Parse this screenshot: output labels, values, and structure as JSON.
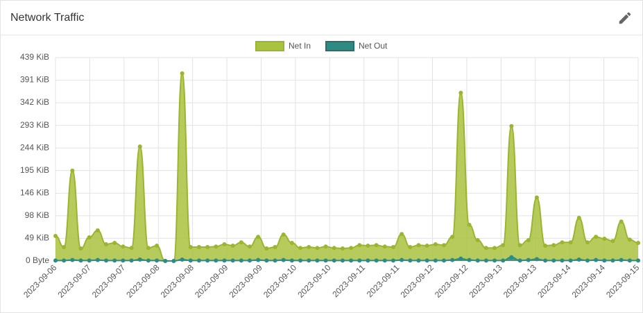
{
  "chart_data": {
    "type": "area",
    "title": "Network Traffic",
    "x_tick_labels": [
      "2023-09-06",
      "2023-09-07",
      "2023-09-07",
      "2023-09-08",
      "2023-09-08",
      "2023-09-09",
      "2023-09-09",
      "2023-09-10",
      "2023-09-10",
      "2023-09-11",
      "2023-09-11",
      "2023-09-12",
      "2023-09-12",
      "2023-09-13",
      "2023-09-13",
      "2023-09-14",
      "2023-09-14",
      "2023-09-15"
    ],
    "series": [
      {
        "name": "Net In",
        "color": "#a9c23f",
        "values": [
          54,
          30,
          195,
          27,
          51,
          66,
          36,
          39,
          31,
          28,
          247,
          28,
          33,
          0,
          0,
          405,
          30,
          30,
          30,
          31,
          36,
          33,
          40,
          31,
          52,
          27,
          30,
          57,
          39,
          28,
          30,
          28,
          31,
          28,
          27,
          28,
          34,
          33,
          34,
          31,
          30,
          58,
          30,
          34,
          33,
          36,
          34,
          52,
          363,
          78,
          45,
          28,
          28,
          34,
          291,
          34,
          45,
          137,
          33,
          34,
          40,
          40,
          93,
          40,
          52,
          48,
          43,
          85,
          46,
          39
        ]
      },
      {
        "name": "Net Out",
        "color": "#2e8b84",
        "values": [
          1,
          1,
          2,
          1,
          1,
          2,
          1,
          1,
          1,
          1,
          3,
          1,
          1,
          0,
          0,
          3,
          1,
          1,
          1,
          1,
          1,
          1,
          1,
          1,
          2,
          1,
          1,
          2,
          1,
          1,
          1,
          1,
          1,
          1,
          1,
          1,
          1,
          1,
          1,
          1,
          1,
          2,
          1,
          1,
          1,
          1,
          1,
          2,
          5,
          2,
          1,
          1,
          1,
          1,
          8,
          1,
          2,
          4,
          1,
          1,
          1,
          1,
          3,
          1,
          2,
          1,
          1,
          2,
          1,
          1
        ]
      }
    ],
    "ylim": [
      0,
      439
    ],
    "yticks": [
      {
        "value": 0,
        "label": "0 Byte"
      },
      {
        "value": 48.8,
        "label": "49 KiB"
      },
      {
        "value": 97.6,
        "label": "98 KiB"
      },
      {
        "value": 146.3,
        "label": "146 KiB"
      },
      {
        "value": 195.1,
        "label": "195 KiB"
      },
      {
        "value": 243.9,
        "label": "244 KiB"
      },
      {
        "value": 292.7,
        "label": "293 KiB"
      },
      {
        "value": 341.5,
        "label": "342 KiB"
      },
      {
        "value": 390.2,
        "label": "391 KiB"
      },
      {
        "value": 439,
        "label": "439 KiB"
      }
    ],
    "grid": true
  }
}
